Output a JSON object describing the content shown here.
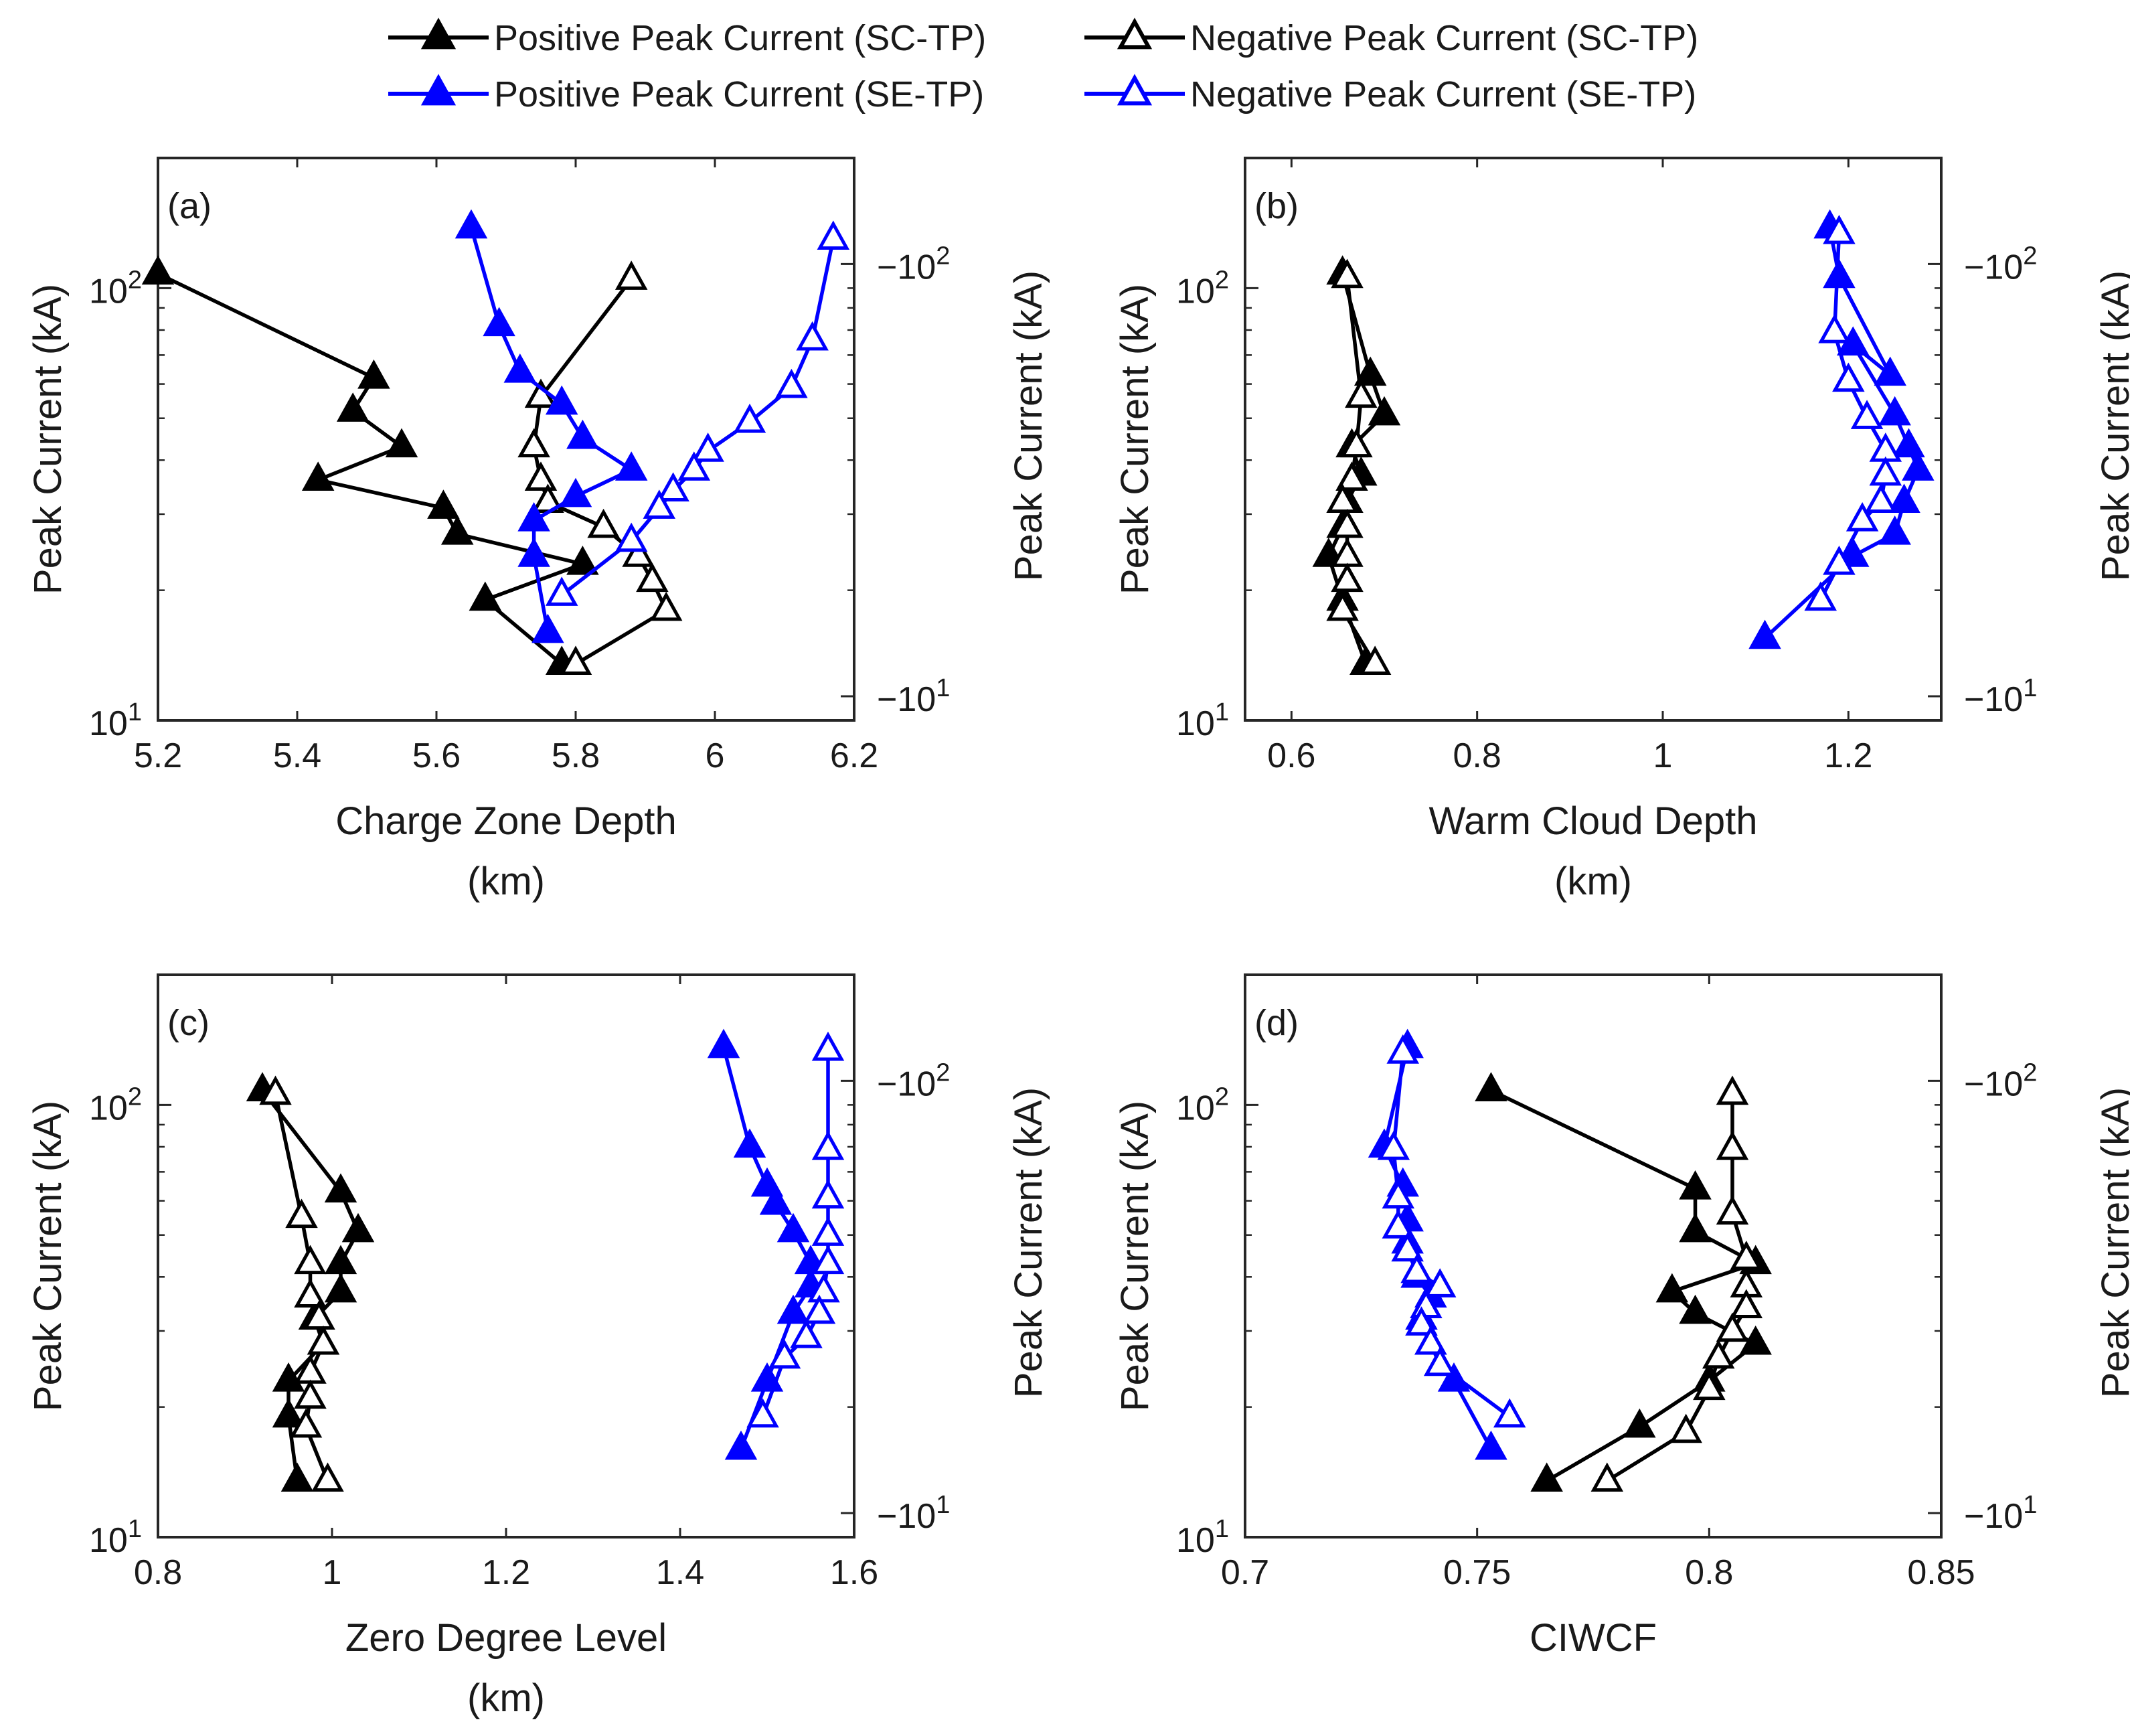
{
  "legend": {
    "items": [
      {
        "label": "Positive Peak Current (SC-TP)",
        "color": "#000000",
        "marker": "filled-triangle"
      },
      {
        "label": "Negative Peak Current (SC-TP)",
        "color": "#000000",
        "marker": "open-triangle"
      },
      {
        "label": "Positive Peak Current (SE-TP)",
        "color": "#0000ff",
        "marker": "filled-triangle"
      },
      {
        "label": "Negative Peak Current (SE-TP)",
        "color": "#0000ff",
        "marker": "open-triangle"
      }
    ]
  },
  "colors": {
    "sc_tp": "#000000",
    "se_tp": "#0000ff"
  },
  "chart_data": [
    {
      "type": "line",
      "panel_label": "(a)",
      "xlabel": "Charge Zone Depth",
      "xunit": "(km)",
      "xlim": [
        5.2,
        6.2
      ],
      "xticks": [
        "5.2",
        "5.4",
        "5.6",
        "5.8",
        "6",
        "6.2"
      ],
      "ylabel_left": "Peak Current (kA)",
      "ylabel_right": "Peak Current (kA)",
      "yscale": "log",
      "ylim": [
        10,
        200
      ],
      "yticks_left": [
        {
          "base": "10",
          "exp": "1",
          "value": 10
        },
        {
          "base": "10",
          "exp": "2",
          "value": 100
        }
      ],
      "yticks_right": [
        {
          "base": "−10",
          "exp": "1",
          "value": 10
        },
        {
          "base": "−10",
          "exp": "2",
          "value": 100
        }
      ],
      "series": [
        {
          "name": "Positive Peak Current (SC-TP)",
          "color": "#000000",
          "filled": true,
          "x": [
            5.2,
            5.51,
            5.48,
            5.55,
            5.43,
            5.61,
            5.63,
            5.81,
            5.67,
            5.78
          ],
          "y": [
            108,
            62,
            52,
            43,
            36,
            31,
            27,
            23,
            19,
            13.5
          ]
        },
        {
          "name": "Negative Peak Current (SC-TP)",
          "color": "#000000",
          "filled": false,
          "x": [
            5.88,
            5.75,
            5.74,
            5.75,
            5.76,
            5.84,
            5.89,
            5.91,
            5.93,
            5.8
          ],
          "y": [
            105,
            56,
            43,
            36,
            32,
            28,
            24,
            21,
            18,
            13.5
          ]
        },
        {
          "name": "Positive Peak Current (SE-TP)",
          "color": "#0000ff",
          "filled": true,
          "x": [
            5.65,
            5.69,
            5.72,
            5.78,
            5.81,
            5.88,
            5.8,
            5.74,
            5.74,
            5.76
          ],
          "y": [
            138,
            82,
            64,
            54,
            45,
            38,
            33,
            29,
            24,
            16
          ]
        },
        {
          "name": "Negative Peak Current (SE-TP)",
          "color": "#0000ff",
          "filled": false,
          "x": [
            6.17,
            6.14,
            6.11,
            6.05,
            5.99,
            5.97,
            5.94,
            5.92,
            5.88,
            5.78
          ],
          "y": [
            130,
            76,
            59,
            49,
            42,
            38,
            34,
            31,
            26,
            19.5
          ]
        }
      ]
    },
    {
      "type": "line",
      "panel_label": "(b)",
      "xlabel": "Warm Cloud Depth",
      "xunit": "(km)",
      "xlim": [
        0.55,
        1.3
      ],
      "xticks": [
        "0.6",
        "0.8",
        "1",
        "1.2"
      ],
      "ylabel_left": "Peak Current (kA)",
      "ylabel_right": "Peak Current (kA)",
      "yscale": "log",
      "ylim": [
        10,
        200
      ],
      "yticks_left": [
        {
          "base": "10",
          "exp": "1",
          "value": 10
        },
        {
          "base": "10",
          "exp": "2",
          "value": 100
        }
      ],
      "yticks_right": [
        {
          "base": "−10",
          "exp": "1",
          "value": 10
        },
        {
          "base": "−10",
          "exp": "2",
          "value": 100
        }
      ],
      "series": [
        {
          "name": "Positive Peak Current (SC-TP)",
          "color": "#000000",
          "filled": true,
          "x": [
            0.655,
            0.685,
            0.7,
            0.665,
            0.675,
            0.66,
            0.655,
            0.64,
            0.655,
            0.68
          ],
          "y": [
            108,
            63,
            51,
            43,
            37,
            32,
            28,
            24,
            19,
            13.5
          ]
        },
        {
          "name": "Negative Peak Current (SC-TP)",
          "color": "#000000",
          "filled": false,
          "x": [
            0.66,
            0.675,
            0.67,
            0.665,
            0.655,
            0.66,
            0.66,
            0.66,
            0.655,
            0.69
          ],
          "y": [
            106,
            56,
            43,
            36,
            32,
            28,
            24,
            21,
            18,
            13.5
          ]
        },
        {
          "name": "Positive Peak Current (SE-TP)",
          "color": "#0000ff",
          "filled": true,
          "x": [
            1.18,
            1.19,
            1.245,
            1.205,
            1.25,
            1.265,
            1.275,
            1.26,
            1.25,
            1.205,
            1.11
          ],
          "y": [
            138,
            106,
            63,
            74,
            51,
            43,
            38,
            32,
            27,
            24,
            15.5
          ]
        },
        {
          "name": "Negative Peak Current (SE-TP)",
          "color": "#0000ff",
          "filled": false,
          "x": [
            1.19,
            1.185,
            1.2,
            1.22,
            1.24,
            1.24,
            1.235,
            1.215,
            1.19,
            1.17
          ],
          "y": [
            134,
            79,
            61,
            50,
            42,
            37,
            32,
            29,
            23,
            19
          ]
        }
      ]
    },
    {
      "type": "line",
      "panel_label": "(c)",
      "xlabel": "Zero Degree Level",
      "xunit": "(km)",
      "xlim": [
        0.8,
        1.6
      ],
      "xticks": [
        "0.8",
        "1",
        "1.2",
        "1.4",
        "1.6"
      ],
      "ylabel_left": "Peak Current (kA)",
      "ylabel_right": "Peak Current (kA)",
      "yscale": "log",
      "ylim": [
        10,
        200
      ],
      "yticks_left": [
        {
          "base": "10",
          "exp": "1",
          "value": 10
        },
        {
          "base": "10",
          "exp": "2",
          "value": 100
        }
      ],
      "yticks_right": [
        {
          "base": "−10",
          "exp": "1",
          "value": 10
        },
        {
          "base": "−10",
          "exp": "2",
          "value": 100
        }
      ],
      "series": [
        {
          "name": "Positive Peak Current (SC-TP)",
          "color": "#000000",
          "filled": true,
          "x": [
            0.92,
            1.01,
            1.03,
            1.01,
            1.01,
            0.98,
            0.99,
            0.95,
            0.95,
            0.96
          ],
          "y": [
            108,
            63,
            51,
            43,
            37,
            32,
            28,
            23,
            19,
            13.5
          ]
        },
        {
          "name": "Negative Peak Current (SC-TP)",
          "color": "#000000",
          "filled": false,
          "x": [
            0.935,
            0.965,
            0.975,
            0.975,
            0.985,
            0.99,
            0.975,
            0.975,
            0.97,
            0.995
          ],
          "y": [
            106,
            55,
            43,
            36,
            32,
            28,
            24,
            21,
            18,
            13.5
          ]
        },
        {
          "name": "Positive Peak Current (SE-TP)",
          "color": "#0000ff",
          "filled": true,
          "x": [
            1.45,
            1.48,
            1.5,
            1.51,
            1.53,
            1.55,
            1.55,
            1.53,
            1.5,
            1.47
          ],
          "y": [
            136,
            80,
            65,
            59,
            51,
            43,
            38,
            33,
            23,
            16
          ]
        },
        {
          "name": "Negative Peak Current (SE-TP)",
          "color": "#0000ff",
          "filled": false,
          "x": [
            1.57,
            1.57,
            1.57,
            1.57,
            1.57,
            1.565,
            1.56,
            1.545,
            1.52,
            1.495
          ],
          "y": [
            134,
            79,
            61,
            50,
            43,
            37,
            33,
            29,
            26,
            19
          ]
        }
      ]
    },
    {
      "type": "line",
      "panel_label": "(d)",
      "xlabel": "CIWCF",
      "xunit": "",
      "xlim": [
        0.7,
        0.85
      ],
      "xticks": [
        "0.7",
        "0.75",
        "0.8",
        "0.85"
      ],
      "ylabel_left": "Peak Current (kA)",
      "ylabel_right": "Peak Current (kA)",
      "yscale": "log",
      "ylim": [
        10,
        200
      ],
      "yticks_left": [
        {
          "base": "10",
          "exp": "1",
          "value": 10
        },
        {
          "base": "10",
          "exp": "2",
          "value": 100
        }
      ],
      "yticks_right": [
        {
          "base": "−10",
          "exp": "1",
          "value": 10
        },
        {
          "base": "−10",
          "exp": "2",
          "value": 100
        }
      ],
      "series": [
        {
          "name": "Positive Peak Current (SC-TP)",
          "color": "#000000",
          "filled": true,
          "x": [
            0.753,
            0.797,
            0.797,
            0.81,
            0.792,
            0.797,
            0.81,
            0.8,
            0.785,
            0.765
          ],
          "y": [
            108,
            64,
            51,
            43,
            37,
            33,
            28,
            23,
            18,
            13.5
          ]
        },
        {
          "name": "Negative Peak Current (SC-TP)",
          "color": "#000000",
          "filled": false,
          "x": [
            0.805,
            0.805,
            0.805,
            0.808,
            0.808,
            0.808,
            0.805,
            0.802,
            0.8,
            0.795,
            0.778
          ],
          "y": [
            106,
            79,
            56,
            44,
            38,
            34,
            30,
            26,
            22,
            17.5,
            13.5
          ]
        },
        {
          "name": "Positive Peak Current (SE-TP)",
          "color": "#0000ff",
          "filled": true,
          "x": [
            0.735,
            0.73,
            0.734,
            0.735,
            0.735,
            0.737,
            0.74,
            0.738,
            0.74,
            0.745,
            0.753
          ],
          "y": [
            136,
            80,
            65,
            54,
            48,
            40,
            36,
            32,
            28,
            23,
            16
          ]
        },
        {
          "name": "Negative Peak Current (SE-TP)",
          "color": "#0000ff",
          "filled": false,
          "x": [
            0.734,
            0.732,
            0.733,
            0.733,
            0.735,
            0.737,
            0.742,
            0.739,
            0.738,
            0.74,
            0.742,
            0.757
          ],
          "y": [
            132,
            79,
            61,
            52,
            46,
            41,
            38,
            34,
            31,
            28,
            25,
            19
          ]
        }
      ]
    }
  ]
}
